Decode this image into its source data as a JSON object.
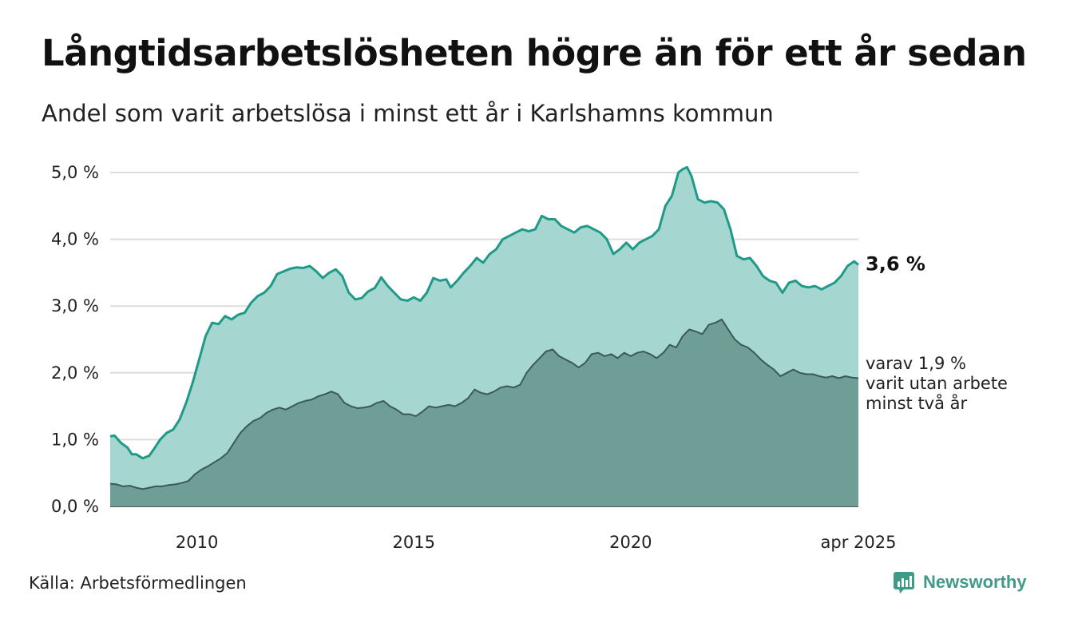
{
  "title": "Långtidsarbetslösheten högre än för ett år sedan",
  "subtitle": "Andel som varit arbetslösa i minst ett år i Karlshamns kommun",
  "source": "Källa: Arbetsförmedlingen",
  "brand": "Newsworthy",
  "colors": {
    "upper_fill": "#a5d6d0",
    "upper_line": "#1f9a88",
    "lower_fill": "#6f9e97",
    "lower_line": "#3b5a55",
    "grid": "#dddddd",
    "brand": "#3f9a88"
  },
  "chart_data": {
    "type": "area",
    "x_unit": "year",
    "xlim": [
      2008.0,
      2025.25
    ],
    "ylim": [
      0,
      5.0
    ],
    "y_ticks": [
      "0,0 %",
      "1,0 %",
      "2,0 %",
      "3,0 %",
      "4,0 %",
      "5,0 %"
    ],
    "x_ticks": [
      {
        "x": 2010,
        "label": "2010"
      },
      {
        "x": 2015,
        "label": "2015"
      },
      {
        "x": 2020,
        "label": "2020"
      },
      {
        "x": 2025.25,
        "label": "apr 2025"
      }
    ],
    "end_label": "3,6 %",
    "sub_label": [
      "varav 1,9 %",
      "varit utan arbete",
      "minst två år"
    ],
    "series": [
      {
        "key": "minst_ett_ar",
        "points": [
          [
            2008.0,
            1.05
          ],
          [
            2008.1,
            1.06
          ],
          [
            2008.25,
            0.95
          ],
          [
            2008.4,
            0.88
          ],
          [
            2008.5,
            0.78
          ],
          [
            2008.6,
            0.78
          ],
          [
            2008.75,
            0.72
          ],
          [
            2008.9,
            0.76
          ],
          [
            2009.0,
            0.85
          ],
          [
            2009.15,
            1.0
          ],
          [
            2009.3,
            1.1
          ],
          [
            2009.45,
            1.15
          ],
          [
            2009.6,
            1.3
          ],
          [
            2009.75,
            1.55
          ],
          [
            2009.9,
            1.85
          ],
          [
            2010.05,
            2.2
          ],
          [
            2010.2,
            2.55
          ],
          [
            2010.35,
            2.75
          ],
          [
            2010.5,
            2.73
          ],
          [
            2010.65,
            2.85
          ],
          [
            2010.8,
            2.8
          ],
          [
            2010.95,
            2.87
          ],
          [
            2011.1,
            2.9
          ],
          [
            2011.25,
            3.05
          ],
          [
            2011.4,
            3.15
          ],
          [
            2011.55,
            3.2
          ],
          [
            2011.7,
            3.3
          ],
          [
            2011.85,
            3.48
          ],
          [
            2012.0,
            3.52
          ],
          [
            2012.15,
            3.56
          ],
          [
            2012.3,
            3.58
          ],
          [
            2012.45,
            3.57
          ],
          [
            2012.6,
            3.6
          ],
          [
            2012.75,
            3.52
          ],
          [
            2012.9,
            3.42
          ],
          [
            2013.05,
            3.5
          ],
          [
            2013.2,
            3.55
          ],
          [
            2013.35,
            3.45
          ],
          [
            2013.5,
            3.2
          ],
          [
            2013.65,
            3.1
          ],
          [
            2013.8,
            3.12
          ],
          [
            2013.95,
            3.22
          ],
          [
            2014.1,
            3.27
          ],
          [
            2014.25,
            3.43
          ],
          [
            2014.4,
            3.3
          ],
          [
            2014.55,
            3.2
          ],
          [
            2014.7,
            3.1
          ],
          [
            2014.85,
            3.08
          ],
          [
            2015.0,
            3.13
          ],
          [
            2015.15,
            3.08
          ],
          [
            2015.3,
            3.2
          ],
          [
            2015.45,
            3.42
          ],
          [
            2015.6,
            3.38
          ],
          [
            2015.75,
            3.4
          ],
          [
            2015.85,
            3.28
          ],
          [
            2016.0,
            3.38
          ],
          [
            2016.15,
            3.5
          ],
          [
            2016.3,
            3.6
          ],
          [
            2016.45,
            3.72
          ],
          [
            2016.6,
            3.65
          ],
          [
            2016.75,
            3.78
          ],
          [
            2016.9,
            3.85
          ],
          [
            2017.05,
            4.0
          ],
          [
            2017.2,
            4.05
          ],
          [
            2017.35,
            4.1
          ],
          [
            2017.5,
            4.15
          ],
          [
            2017.65,
            4.12
          ],
          [
            2017.8,
            4.15
          ],
          [
            2017.95,
            4.35
          ],
          [
            2018.1,
            4.3
          ],
          [
            2018.25,
            4.3
          ],
          [
            2018.4,
            4.2
          ],
          [
            2018.55,
            4.15
          ],
          [
            2018.7,
            4.1
          ],
          [
            2018.85,
            4.18
          ],
          [
            2019.0,
            4.2
          ],
          [
            2019.15,
            4.15
          ],
          [
            2019.3,
            4.1
          ],
          [
            2019.45,
            4.0
          ],
          [
            2019.6,
            3.78
          ],
          [
            2019.75,
            3.85
          ],
          [
            2019.9,
            3.95
          ],
          [
            2020.05,
            3.85
          ],
          [
            2020.2,
            3.95
          ],
          [
            2020.35,
            4.0
          ],
          [
            2020.5,
            4.05
          ],
          [
            2020.65,
            4.15
          ],
          [
            2020.8,
            4.5
          ],
          [
            2020.95,
            4.65
          ],
          [
            2021.1,
            5.0
          ],
          [
            2021.2,
            5.05
          ],
          [
            2021.3,
            5.08
          ],
          [
            2021.4,
            4.95
          ],
          [
            2021.55,
            4.6
          ],
          [
            2021.7,
            4.55
          ],
          [
            2021.85,
            4.57
          ],
          [
            2022.0,
            4.55
          ],
          [
            2022.15,
            4.45
          ],
          [
            2022.3,
            4.15
          ],
          [
            2022.45,
            3.75
          ],
          [
            2022.6,
            3.7
          ],
          [
            2022.75,
            3.72
          ],
          [
            2022.9,
            3.6
          ],
          [
            2023.05,
            3.45
          ],
          [
            2023.2,
            3.38
          ],
          [
            2023.35,
            3.35
          ],
          [
            2023.5,
            3.2
          ],
          [
            2023.65,
            3.35
          ],
          [
            2023.8,
            3.38
          ],
          [
            2023.95,
            3.3
          ],
          [
            2024.1,
            3.28
          ],
          [
            2024.25,
            3.3
          ],
          [
            2024.4,
            3.25
          ],
          [
            2024.55,
            3.3
          ],
          [
            2024.7,
            3.35
          ],
          [
            2024.85,
            3.45
          ],
          [
            2025.0,
            3.6
          ],
          [
            2025.15,
            3.67
          ],
          [
            2025.25,
            3.62
          ]
        ]
      },
      {
        "key": "minst_tva_ar",
        "points": [
          [
            2008.0,
            0.34
          ],
          [
            2008.15,
            0.33
          ],
          [
            2008.3,
            0.3
          ],
          [
            2008.45,
            0.31
          ],
          [
            2008.6,
            0.28
          ],
          [
            2008.75,
            0.26
          ],
          [
            2008.9,
            0.28
          ],
          [
            2009.05,
            0.3
          ],
          [
            2009.2,
            0.3
          ],
          [
            2009.35,
            0.32
          ],
          [
            2009.5,
            0.33
          ],
          [
            2009.65,
            0.35
          ],
          [
            2009.8,
            0.38
          ],
          [
            2009.95,
            0.48
          ],
          [
            2010.1,
            0.55
          ],
          [
            2010.25,
            0.6
          ],
          [
            2010.4,
            0.66
          ],
          [
            2010.55,
            0.72
          ],
          [
            2010.7,
            0.8
          ],
          [
            2010.85,
            0.95
          ],
          [
            2011.0,
            1.1
          ],
          [
            2011.15,
            1.2
          ],
          [
            2011.3,
            1.28
          ],
          [
            2011.45,
            1.32
          ],
          [
            2011.6,
            1.4
          ],
          [
            2011.75,
            1.45
          ],
          [
            2011.9,
            1.48
          ],
          [
            2012.05,
            1.45
          ],
          [
            2012.2,
            1.5
          ],
          [
            2012.35,
            1.55
          ],
          [
            2012.5,
            1.58
          ],
          [
            2012.65,
            1.6
          ],
          [
            2012.8,
            1.65
          ],
          [
            2012.95,
            1.68
          ],
          [
            2013.1,
            1.72
          ],
          [
            2013.25,
            1.68
          ],
          [
            2013.4,
            1.55
          ],
          [
            2013.55,
            1.5
          ],
          [
            2013.7,
            1.47
          ],
          [
            2013.85,
            1.48
          ],
          [
            2014.0,
            1.5
          ],
          [
            2014.15,
            1.55
          ],
          [
            2014.3,
            1.58
          ],
          [
            2014.45,
            1.5
          ],
          [
            2014.6,
            1.45
          ],
          [
            2014.75,
            1.38
          ],
          [
            2014.9,
            1.38
          ],
          [
            2015.05,
            1.35
          ],
          [
            2015.2,
            1.42
          ],
          [
            2015.35,
            1.5
          ],
          [
            2015.5,
            1.48
          ],
          [
            2015.65,
            1.5
          ],
          [
            2015.8,
            1.52
          ],
          [
            2015.95,
            1.5
          ],
          [
            2016.1,
            1.55
          ],
          [
            2016.25,
            1.62
          ],
          [
            2016.4,
            1.75
          ],
          [
            2016.55,
            1.7
          ],
          [
            2016.7,
            1.68
          ],
          [
            2016.85,
            1.72
          ],
          [
            2017.0,
            1.78
          ],
          [
            2017.15,
            1.8
          ],
          [
            2017.3,
            1.78
          ],
          [
            2017.45,
            1.82
          ],
          [
            2017.6,
            2.0
          ],
          [
            2017.75,
            2.12
          ],
          [
            2017.9,
            2.22
          ],
          [
            2018.05,
            2.32
          ],
          [
            2018.2,
            2.35
          ],
          [
            2018.35,
            2.25
          ],
          [
            2018.5,
            2.2
          ],
          [
            2018.65,
            2.15
          ],
          [
            2018.8,
            2.08
          ],
          [
            2018.95,
            2.15
          ],
          [
            2019.1,
            2.28
          ],
          [
            2019.25,
            2.3
          ],
          [
            2019.4,
            2.25
          ],
          [
            2019.55,
            2.28
          ],
          [
            2019.7,
            2.22
          ],
          [
            2019.85,
            2.3
          ],
          [
            2020.0,
            2.25
          ],
          [
            2020.15,
            2.3
          ],
          [
            2020.3,
            2.32
          ],
          [
            2020.45,
            2.28
          ],
          [
            2020.6,
            2.22
          ],
          [
            2020.75,
            2.3
          ],
          [
            2020.9,
            2.42
          ],
          [
            2021.05,
            2.38
          ],
          [
            2021.2,
            2.55
          ],
          [
            2021.35,
            2.65
          ],
          [
            2021.5,
            2.62
          ],
          [
            2021.65,
            2.58
          ],
          [
            2021.8,
            2.72
          ],
          [
            2021.95,
            2.75
          ],
          [
            2022.1,
            2.8
          ],
          [
            2022.25,
            2.65
          ],
          [
            2022.4,
            2.5
          ],
          [
            2022.55,
            2.42
          ],
          [
            2022.7,
            2.38
          ],
          [
            2022.85,
            2.3
          ],
          [
            2023.0,
            2.2
          ],
          [
            2023.15,
            2.12
          ],
          [
            2023.3,
            2.05
          ],
          [
            2023.45,
            1.95
          ],
          [
            2023.6,
            2.0
          ],
          [
            2023.75,
            2.05
          ],
          [
            2023.9,
            2.0
          ],
          [
            2024.05,
            1.98
          ],
          [
            2024.2,
            1.98
          ],
          [
            2024.35,
            1.95
          ],
          [
            2024.5,
            1.93
          ],
          [
            2024.65,
            1.95
          ],
          [
            2024.8,
            1.92
          ],
          [
            2024.95,
            1.95
          ],
          [
            2025.1,
            1.93
          ],
          [
            2025.25,
            1.92
          ]
        ]
      }
    ]
  }
}
